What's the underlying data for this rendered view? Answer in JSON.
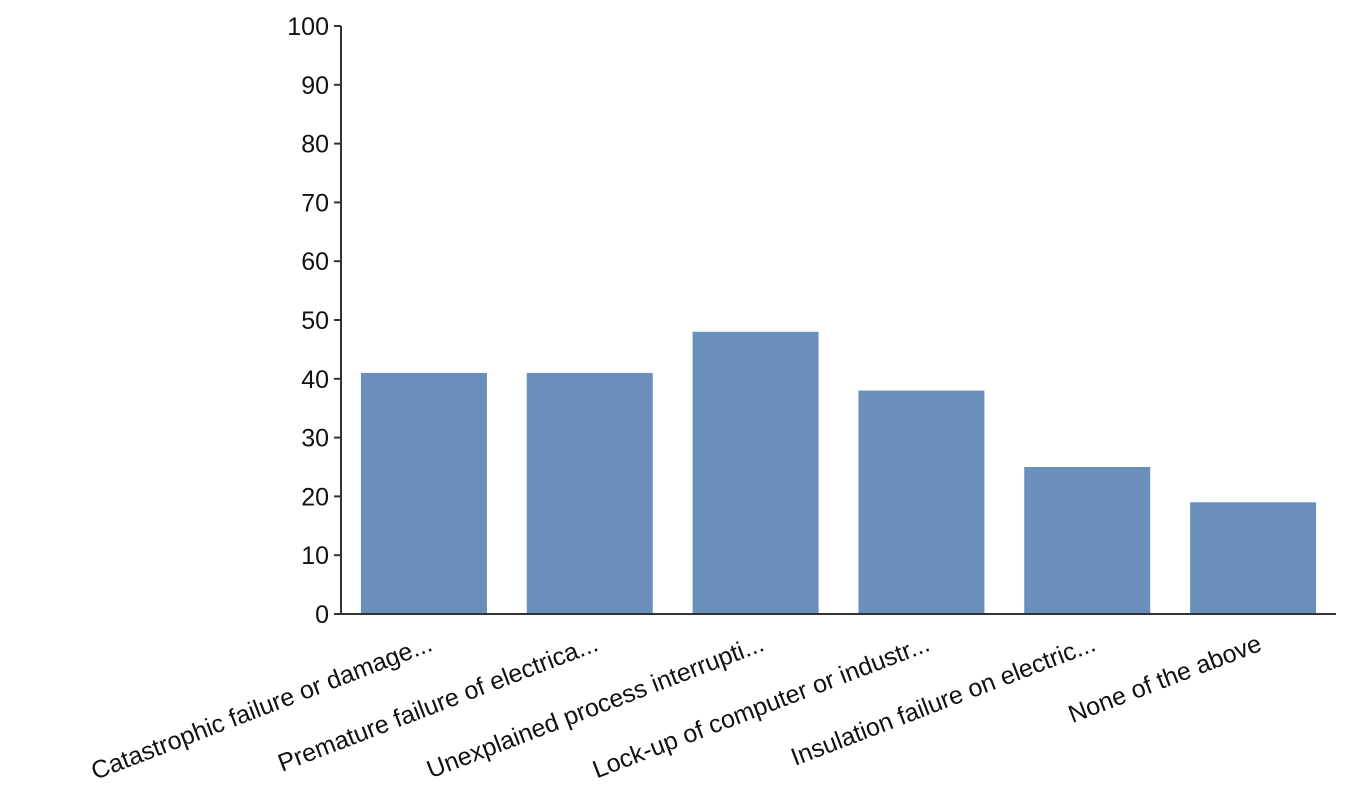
{
  "chart_data": {
    "type": "bar",
    "title": "",
    "xlabel": "",
    "ylabel": "",
    "ylim": [
      0,
      100
    ],
    "yticks": [
      0,
      10,
      20,
      30,
      40,
      50,
      60,
      70,
      80,
      90,
      100
    ],
    "grid": false,
    "legend": "none",
    "bar_color": "#6a8fbb",
    "categories": [
      "Catastrophic failure or damage...",
      "Premature failure of electrica...",
      "Unexplained process interrupti...",
      "Lock-up of computer or industr...",
      "Insulation failure on electric...",
      "None of the above"
    ],
    "values": [
      41,
      41,
      48,
      38,
      25,
      19
    ]
  }
}
